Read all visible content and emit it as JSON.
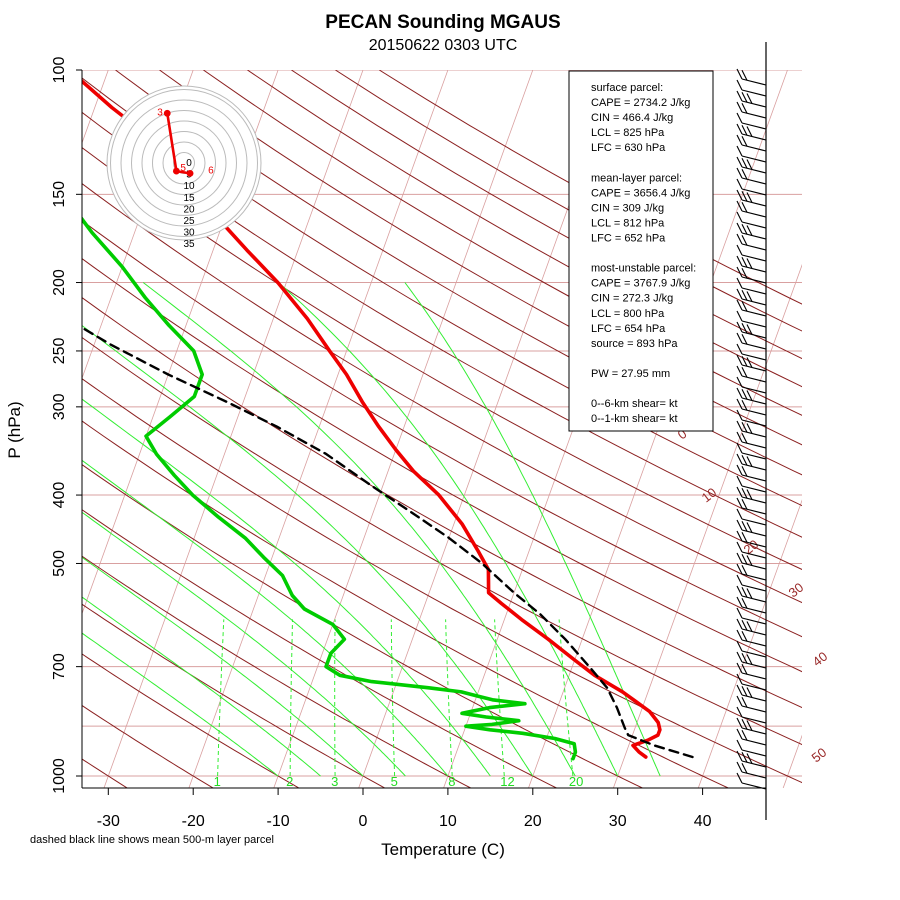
{
  "title": "PECAN Sounding MGAUS",
  "subtitle": "20150622 0303 UTC",
  "footnote": "dashed black line shows mean 500-m layer parcel",
  "colors": {
    "temperature": "#ee0000",
    "dewpoint": "#00cc00",
    "parcel": "#000000",
    "dry_adiabat": "#8b2020",
    "moist_adiabat": "#33ee33",
    "mixing_ratio": "#33ee33",
    "isobar": "#d9a0a0",
    "isotherm": "#d9a0a0"
  },
  "info_box": {
    "lines": [
      "surface parcel:",
      "CAPE = 2734.2 J/kg",
      "CIN = 466.4 J/kg",
      "LCL = 825 hPa",
      "LFC = 630 hPa",
      "",
      "mean-layer parcel:",
      "CAPE = 3656.4 J/kg",
      "CIN = 309 J/kg",
      "LCL = 812 hPa",
      "LFC = 652 hPa",
      "",
      "most-unstable parcel:",
      "CAPE = 3767.9 J/kg",
      "CIN = 272.3 J/kg",
      "LCL = 800 hPa",
      "LFC = 654 hPa",
      "source = 893 hPa",
      "",
      "PW =  27.95 mm",
      "",
      "0--6-km shear=  kt",
      "0--1-km shear=  kt"
    ]
  },
  "hodograph": {
    "ring_labels": [
      "0",
      "5",
      "10",
      "15",
      "20",
      "25",
      "30",
      "35"
    ],
    "point_labels": [
      "3",
      "5",
      "6"
    ],
    "points": [
      [
        -5.5,
        21.5
      ],
      [
        -2.5,
        -3.5
      ],
      [
        2,
        -4.5
      ]
    ]
  },
  "chart_data": {
    "type": "line",
    "subtype": "skew-T log-p sounding",
    "xlabel": "Temperature (C)",
    "ylabel": "P (hPa)",
    "x_ticks": [
      -30,
      -20,
      -10,
      0,
      10,
      20,
      30,
      40
    ],
    "y_ticks": [
      100,
      150,
      200,
      250,
      300,
      400,
      500,
      700,
      1000
    ],
    "xlim": [
      -33,
      45
    ],
    "ylim": [
      1050,
      100
    ],
    "mixing_ratio_labels": [
      "1",
      "2",
      "3",
      "5",
      "8",
      "12",
      "20"
    ],
    "dry_adiabat_labels": [
      "0",
      "10",
      "20",
      "30",
      "40",
      "50"
    ],
    "series": [
      {
        "name": "temperature",
        "points": [
          [
            32.5,
            940
          ],
          [
            31.5,
            925
          ],
          [
            30.5,
            905
          ],
          [
            32,
            890
          ],
          [
            33,
            875
          ],
          [
            33,
            860
          ],
          [
            32.5,
            840
          ],
          [
            31,
            810
          ],
          [
            27,
            760
          ],
          [
            23,
            720
          ],
          [
            20,
            685
          ],
          [
            16,
            640
          ],
          [
            12,
            600
          ],
          [
            9,
            570
          ],
          [
            7,
            550
          ],
          [
            6,
            510
          ],
          [
            4,
            480
          ],
          [
            1,
            440
          ],
          [
            -3,
            400
          ],
          [
            -7,
            370
          ],
          [
            -10,
            345
          ],
          [
            -13,
            320
          ],
          [
            -16,
            295
          ],
          [
            -19,
            270
          ],
          [
            -22,
            250
          ],
          [
            -26,
            225
          ],
          [
            -31,
            200
          ],
          [
            -36,
            180
          ],
          [
            -40,
            165
          ],
          [
            -44,
            150
          ],
          [
            -48,
            137
          ],
          [
            -52,
            125
          ],
          [
            -58,
            113
          ],
          [
            -63,
            103
          ],
          [
            -65,
            100
          ]
        ]
      },
      {
        "name": "dewpoint",
        "points": [
          [
            24,
            945
          ],
          [
            24,
            925
          ],
          [
            23.5,
            900
          ],
          [
            21,
            885
          ],
          [
            17,
            870
          ],
          [
            13,
            860
          ],
          [
            10,
            850
          ],
          [
            13,
            845
          ],
          [
            16,
            835
          ],
          [
            12,
            825
          ],
          [
            9,
            815
          ],
          [
            12,
            800
          ],
          [
            16,
            790
          ],
          [
            12,
            780
          ],
          [
            10,
            770
          ],
          [
            8,
            760
          ],
          [
            4,
            750
          ],
          [
            -3,
            735
          ],
          [
            -7,
            720
          ],
          [
            -9,
            700
          ],
          [
            -9,
            670
          ],
          [
            -8,
            640
          ],
          [
            -10,
            610
          ],
          [
            -14,
            580
          ],
          [
            -16,
            555
          ],
          [
            -18,
            520
          ],
          [
            -21,
            490
          ],
          [
            -24,
            460
          ],
          [
            -28,
            430
          ],
          [
            -32,
            400
          ],
          [
            -35,
            375
          ],
          [
            -38,
            350
          ],
          [
            -40,
            330
          ],
          [
            -38,
            310
          ],
          [
            -36,
            290
          ],
          [
            -36,
            270
          ],
          [
            -38,
            250
          ],
          [
            -42,
            230
          ],
          [
            -46,
            210
          ],
          [
            -50,
            190
          ],
          [
            -55,
            170
          ],
          [
            -60,
            150
          ],
          [
            -64,
            135
          ],
          [
            -67,
            122
          ],
          [
            -70,
            112
          ],
          [
            -72,
            103
          ],
          [
            -73,
            100
          ]
        ]
      },
      {
        "name": "parcel",
        "points": [
          [
            38,
            940
          ],
          [
            33,
            905
          ],
          [
            29.5,
            875
          ],
          [
            28.8,
            855
          ],
          [
            27,
            800
          ],
          [
            25,
            750
          ],
          [
            22,
            700
          ],
          [
            18,
            640
          ],
          [
            14,
            590
          ],
          [
            10,
            550
          ],
          [
            5,
            500
          ],
          [
            0,
            460
          ],
          [
            -6,
            420
          ],
          [
            -11,
            390
          ],
          [
            -18,
            350
          ],
          [
            -25,
            320
          ],
          [
            -32,
            295
          ],
          [
            -40,
            270
          ],
          [
            -48,
            245
          ],
          [
            -56,
            220
          ],
          [
            -64,
            200
          ],
          [
            -72,
            180
          ],
          [
            -80,
            160
          ],
          [
            -88,
            145
          ],
          [
            -96,
            130
          ],
          [
            -104,
            118
          ],
          [
            -112,
            108
          ],
          [
            -118,
            100
          ]
        ]
      }
    ]
  }
}
